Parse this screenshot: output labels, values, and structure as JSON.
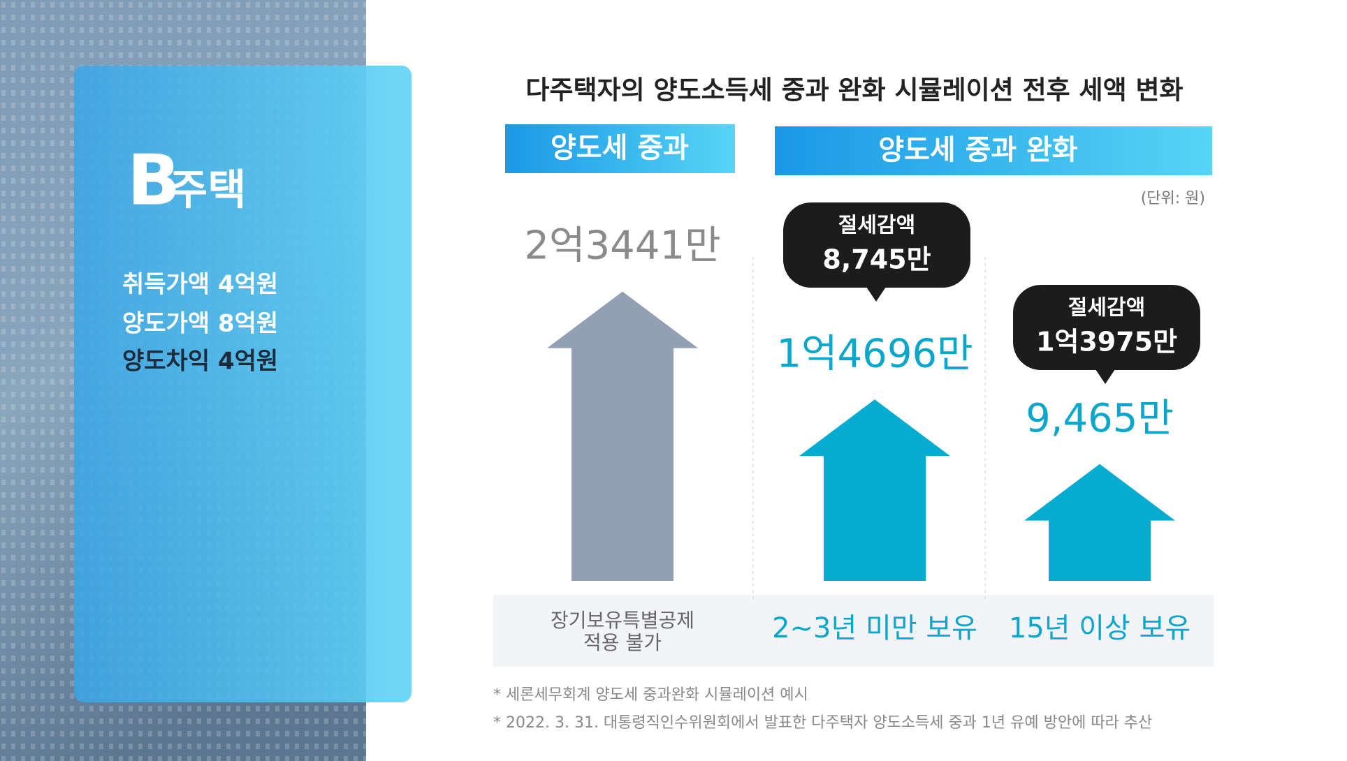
{
  "chart_data": {
    "type": "bar",
    "title": "다주택자의 양도소득세 중과 완화 시뮬레이션 전후 세액 변화",
    "groups": [
      "양도세 중과",
      "양도세 중과 완화"
    ],
    "unit": "(단위: 원)",
    "categories": [
      "장기보유특별공제 적용 불가",
      "2~3년 미만 보유",
      "15년 이상 보유"
    ],
    "values": [
      23441,
      14696,
      9465
    ],
    "value_labels": [
      "2억3441만",
      "1억4696만",
      "9,465만"
    ],
    "colors": [
      "#939fb2",
      "#06abd0",
      "#06abd0"
    ],
    "ylim": [
      0,
      25000
    ],
    "annotations": [
      {
        "title": "절세감액",
        "text": "8,745만"
      },
      {
        "title": "절세감액",
        "text": "1억3975만"
      }
    ],
    "footnotes": [
      "* 세론세무회계 양도세 중과완화 시뮬레이션 예시",
      "* 2022. 3. 31. 대통령직인수위원회에서 발표한 다주택자 양도소득세 중과 1년 유예 방안에 따라 추산"
    ]
  },
  "side_panel": {
    "house": "B",
    "house_suffix": "주택",
    "lines": [
      "취득가액 4억원",
      "양도가액 8억원",
      "양도차익 4억원"
    ]
  }
}
